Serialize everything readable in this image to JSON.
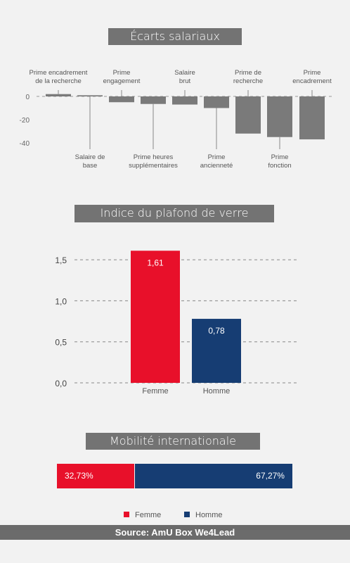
{
  "colors": {
    "femme": "#e8102a",
    "homme": "#163d73",
    "gray_bar": "#7a7a7a",
    "title_bg": "#737373"
  },
  "source_text": "Source: AmU Box We4Lead",
  "chart_data": [
    {
      "type": "bar",
      "title": "Écarts salariaux",
      "categories": [
        "Prime encadrement de la recherche",
        "Salaire de base",
        "Prime engagement",
        "Prime heures supplémentaires",
        "Salaire brut",
        "Prime ancienneté",
        "Prime de recherche",
        "Prime fonction",
        "Prime encadrement"
      ],
      "values": [
        2,
        1,
        -5,
        -6.5,
        -7,
        -10,
        -32,
        -35,
        -37
      ],
      "yticks": [
        "0",
        "-20",
        "-40"
      ],
      "ytick_values": [
        0,
        -20,
        -40
      ],
      "ylim": [
        -45,
        5
      ]
    },
    {
      "type": "bar",
      "title": "Indice du plafond de verre",
      "categories": [
        "Femme",
        "Homme"
      ],
      "values": [
        1.61,
        0.78
      ],
      "data_labels": [
        "1,61",
        "0,78"
      ],
      "yticks": [
        "0,0",
        "0,5",
        "1,0",
        "1,5"
      ],
      "ytick_values": [
        0,
        0.5,
        1.0,
        1.5
      ],
      "ylim": [
        0,
        1.6
      ]
    },
    {
      "type": "bar",
      "title": "Mobilité internationale",
      "categories": [
        "Femme",
        "Homme"
      ],
      "values": [
        32.73,
        67.27
      ],
      "data_labels": [
        "32,73%",
        "67,27%"
      ]
    }
  ],
  "legend": [
    {
      "label": "Femme",
      "color": "#e8102a"
    },
    {
      "label": "Homme",
      "color": "#163d73"
    }
  ]
}
